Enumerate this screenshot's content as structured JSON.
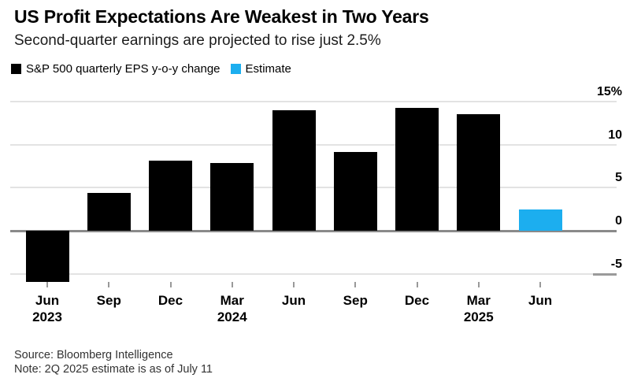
{
  "header": {
    "title": "US Profit Expectations Are Weakest in Two Years",
    "subtitle": "Second-quarter earnings are projected to rise just 2.5%"
  },
  "legend": [
    {
      "label": "S&P 500 quarterly EPS y-o-y change",
      "color": "#000000"
    },
    {
      "label": "Estimate",
      "color": "#1caeef"
    }
  ],
  "chart_data": {
    "type": "bar",
    "title": "US Profit Expectations Are Weakest in Two Years",
    "subtitle": "Second-quarter earnings are projected to rise just 2.5%",
    "categories": [
      "Jun 2023",
      "Sep 2023",
      "Dec 2023",
      "Mar 2024",
      "Jun 2024",
      "Sep 2024",
      "Dec 2024",
      "Mar 2025",
      "Jun 2025"
    ],
    "x_tick_labels": [
      [
        "Jun",
        "2023"
      ],
      [
        "Sep"
      ],
      [
        "Dec"
      ],
      [
        "Mar",
        "2024"
      ],
      [
        "Jun"
      ],
      [
        "Sep"
      ],
      [
        "Dec"
      ],
      [
        "Mar",
        "2025"
      ],
      [
        "Jun"
      ]
    ],
    "series": [
      {
        "name": "S&P 500 quarterly EPS y-o-y change",
        "color": "#000000",
        "values": [
          -5.9,
          4.4,
          8.1,
          7.9,
          14.0,
          9.1,
          14.3,
          13.5,
          null
        ]
      },
      {
        "name": "Estimate",
        "color": "#1caeef",
        "values": [
          null,
          null,
          null,
          null,
          null,
          null,
          null,
          null,
          2.5
        ]
      }
    ],
    "xlabel": "",
    "ylabel": "",
    "unit": "percent",
    "y_ticks": [
      {
        "v": 15,
        "label": "15%"
      },
      {
        "v": 10,
        "label": "10"
      },
      {
        "v": 5,
        "label": "5"
      },
      {
        "v": 0,
        "label": "0"
      },
      {
        "v": -5,
        "label": "-5"
      }
    ],
    "ylim": [
      -6.6,
      15.6
    ],
    "grid": true,
    "legend_position": "top",
    "axis_side": "right"
  },
  "footer": {
    "source": "Source: Bloomberg Intelligence",
    "note": "Note: 2Q 2025 estimate is as of July 11"
  }
}
